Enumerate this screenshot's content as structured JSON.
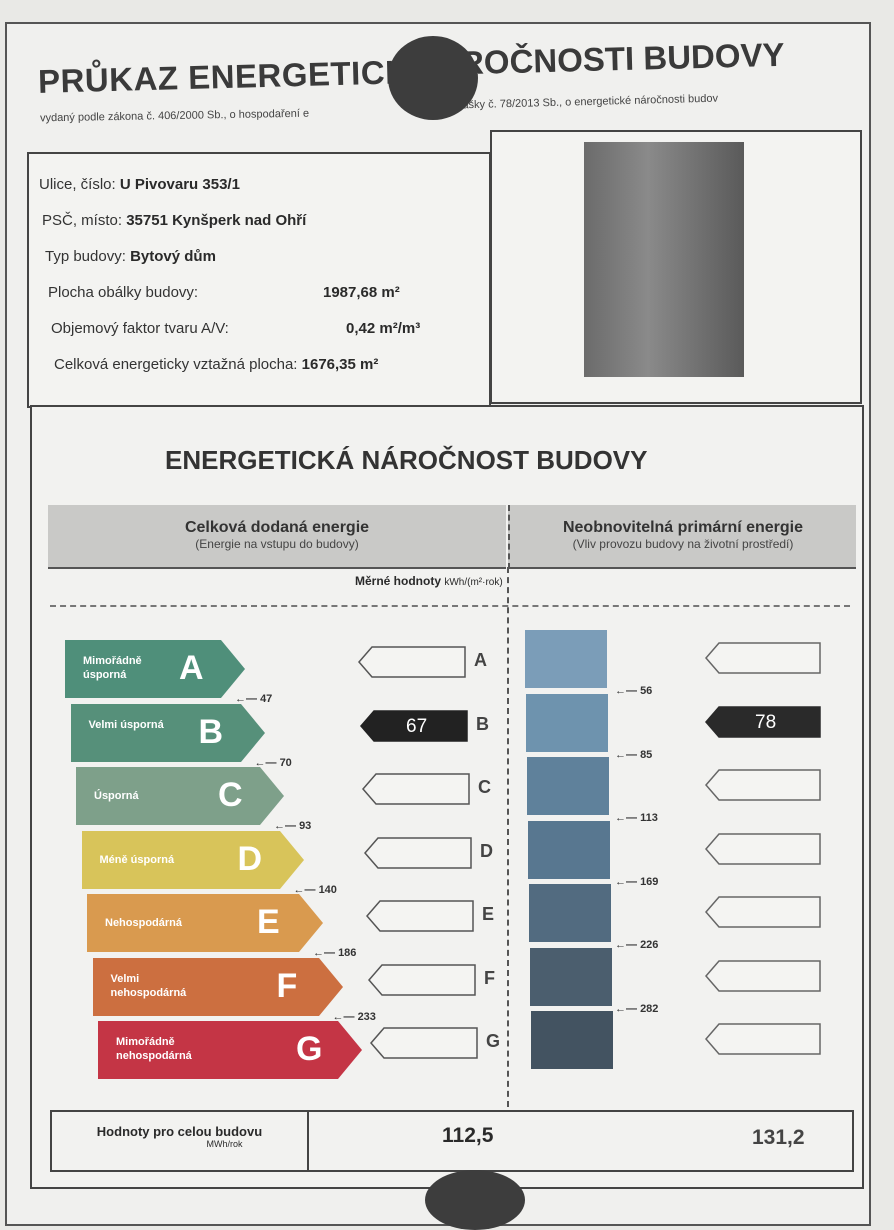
{
  "header": {
    "title_left": "PRŮKAZ ENERGETICK",
    "title_right": "ROČNOSTI BUDOVY",
    "subtitle_left": "vydaný podle zákona č. 406/2000 Sb., o hospodaření e",
    "subtitle_right": "lášky č. 78/2013 Sb., o energetické náročnosti budov"
  },
  "info": [
    {
      "label": "Ulice, číslo:",
      "value": "U Pivovaru 353/1"
    },
    {
      "label": "PSČ, místo:",
      "value": "35751 Kynšperk nad Ohří"
    },
    {
      "label": "Typ budovy:",
      "value": "Bytový dům"
    },
    {
      "label": "Plocha obálky budovy:",
      "value": "1987,68 m²"
    },
    {
      "label": "Objemový faktor tvaru A/V:",
      "value": "0,42 m²/m³"
    },
    {
      "label": "Celková energeticky vztažná plocha:",
      "value": "1676,35 m²"
    }
  ],
  "section": {
    "title": "ENERGETICKÁ NÁROČNOST BUDOVY",
    "left_header": "Celková dodaná energie",
    "left_sub": "(Energie na vstupu do budovy)",
    "right_header": "Neobnovitelná primární energie",
    "right_sub": "(Vliv provozu budovy na životní prostředí)",
    "units_label": "Měrné hodnoty",
    "units": "kWh/(m²·rok)"
  },
  "classes": [
    {
      "letter": "A",
      "label": "Mimořádně úsporná",
      "color": "#4f8f7a"
    },
    {
      "letter": "B",
      "label": "Velmi úsporná",
      "color": "#56907a"
    },
    {
      "letter": "C",
      "label": "Úsporná",
      "color": "#7ea08a"
    },
    {
      "letter": "D",
      "label": "Méně úsporná",
      "color": "#d8c45a"
    },
    {
      "letter": "E",
      "label": "Nehospodárná",
      "color": "#d99a4f"
    },
    {
      "letter": "F",
      "label": "Velmi nehospodárná",
      "color": "#cc6f40"
    },
    {
      "letter": "G",
      "label": "Mimořádně nehospodárná",
      "color": "#c43545"
    }
  ],
  "left_thresholds": [
    "47",
    "70",
    "93",
    "140",
    "186",
    "233"
  ],
  "right_thresholds": [
    "56",
    "85",
    "113",
    "169",
    "226",
    "282"
  ],
  "right_bar_colors": [
    "#7b9db8",
    "#6e93ae",
    "#5f819b",
    "#587790",
    "#526b80",
    "#4b5e6e",
    "#435361"
  ],
  "left_rating": {
    "class": "B",
    "value": "67"
  },
  "right_rating": {
    "class": "B",
    "value": "78"
  },
  "footer": {
    "label": "Hodnoty pro celou budovu",
    "unit": "MWh/rok",
    "left_value": "112,5",
    "right_value": "131,2"
  }
}
